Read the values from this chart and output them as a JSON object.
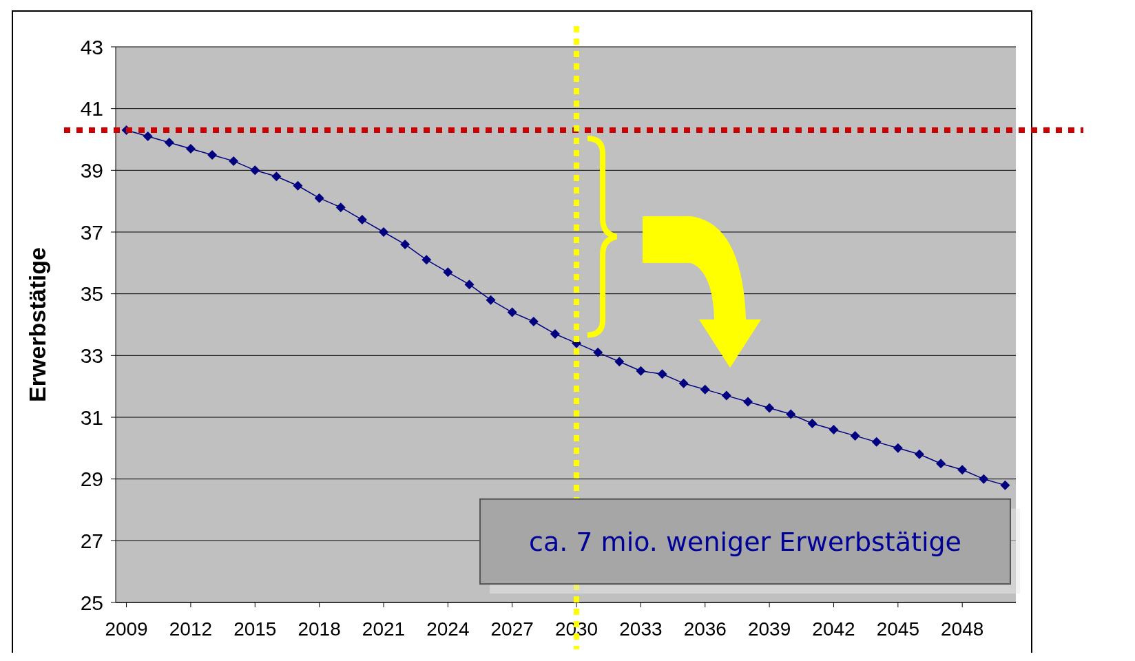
{
  "chart_data": {
    "type": "line",
    "ylabel": "Erwerbstätige",
    "x": [
      2009,
      2010,
      2011,
      2012,
      2013,
      2014,
      2015,
      2016,
      2017,
      2018,
      2019,
      2020,
      2021,
      2022,
      2023,
      2024,
      2025,
      2026,
      2027,
      2028,
      2029,
      2030,
      2031,
      2032,
      2033,
      2034,
      2035,
      2036,
      2037,
      2038,
      2039,
      2040,
      2041,
      2042,
      2043,
      2044,
      2045,
      2046,
      2047,
      2048,
      2049,
      2050
    ],
    "series": [
      {
        "color": "#000080",
        "values": [
          40.3,
          40.1,
          39.9,
          39.7,
          39.5,
          39.3,
          39.0,
          38.8,
          38.5,
          38.1,
          37.8,
          37.4,
          37.0,
          36.6,
          36.1,
          35.7,
          35.3,
          34.8,
          34.4,
          34.1,
          33.7,
          33.4,
          33.1,
          32.8,
          32.5,
          32.4,
          32.1,
          31.9,
          31.7,
          31.5,
          31.3,
          31.1,
          30.8,
          30.6,
          30.4,
          30.2,
          30.0,
          29.8,
          29.5,
          29.3,
          29.0,
          28.8
        ]
      }
    ],
    "xlim": [
      2008.5,
      2050.5
    ],
    "xticks": [
      2009,
      2012,
      2015,
      2018,
      2021,
      2024,
      2027,
      2030,
      2033,
      2036,
      2039,
      2042,
      2045,
      2048
    ],
    "ylim": [
      25,
      43
    ],
    "yticks": [
      25,
      27,
      29,
      31,
      33,
      35,
      37,
      39,
      41,
      43
    ],
    "grid": "y",
    "marker": "diamond",
    "line_style": "solid",
    "ref_lines": [
      {
        "axis": "y",
        "value": 40.3,
        "color": "#cc0000",
        "line_style": "dotted"
      },
      {
        "axis": "x",
        "value": 2030,
        "color": "#ffff00",
        "line_style": "dotted"
      }
    ],
    "annotations": [
      "ca. 7 mio.  weniger Erwerbstätige"
    ]
  }
}
